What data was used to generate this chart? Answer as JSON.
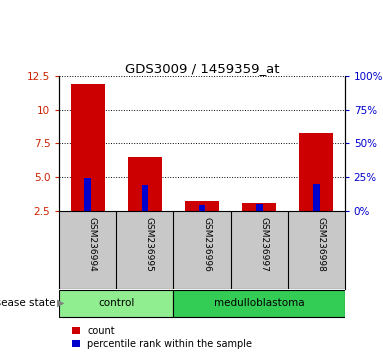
{
  "title": "GDS3009 / 1459359_at",
  "samples": [
    "GSM236994",
    "GSM236995",
    "GSM236996",
    "GSM236997",
    "GSM236998"
  ],
  "count_values": [
    11.9,
    6.5,
    3.2,
    3.1,
    8.3
  ],
  "percentile_values": [
    24,
    19,
    4,
    5,
    20
  ],
  "ylim_left": [
    2.5,
    12.5
  ],
  "ylim_right": [
    0,
    100
  ],
  "yticks_left": [
    2.5,
    5.0,
    7.5,
    10.0,
    12.5
  ],
  "yticks_right": [
    0,
    25,
    50,
    75,
    100
  ],
  "bar_color_count": "#cc0000",
  "bar_color_pct": "#0000cc",
  "bar_width": 0.6,
  "pct_bar_width": 0.12,
  "groups": [
    {
      "label": "control",
      "indices": [
        0,
        1
      ],
      "color": "#90ee90"
    },
    {
      "label": "medulloblastoma",
      "indices": [
        2,
        3,
        4
      ],
      "color": "#33cc55"
    }
  ],
  "disease_state_label": "disease state",
  "legend_count": "count",
  "legend_pct": "percentile rank within the sample",
  "tick_color_left": "#cc2200",
  "tick_color_right": "#0000cc",
  "grid_color": "black",
  "bg_plot": "#ffffff",
  "bg_xtick": "#c8c8c8"
}
